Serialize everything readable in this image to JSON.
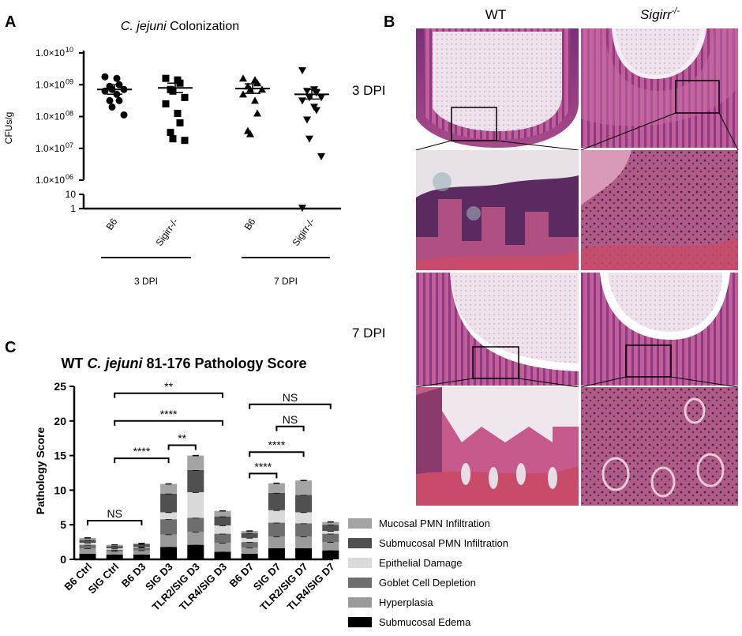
{
  "panels": {
    "a": {
      "letter": "A"
    },
    "b": {
      "letter": "B"
    },
    "c": {
      "letter": "C"
    }
  },
  "histology": {
    "col_wt": "WT",
    "col_sigirr": "Sigirr",
    "col_sigirr_sup": "-/-",
    "row_3dpi": "3 DPI",
    "row_7dpi": "7 DPI",
    "colors": {
      "tissue_dark": "#6b2b6e",
      "tissue_pink": "#c7649b",
      "tissue_light": "#ead9e6",
      "muscle": "#c94b6a"
    }
  },
  "chart_data": [
    {
      "type": "scatter",
      "title_italic": "C. jejuni",
      "title_rest": " Colonization",
      "ylabel": "CFUs/g",
      "yscale": "log (broken axis)",
      "ytick_labels": [
        "1.0×10",
        "1.0×10",
        "1.0×10",
        "1.0×10",
        "1.0×10",
        "10",
        "1"
      ],
      "ytick_exponents": [
        "10",
        "09",
        "08",
        "07",
        "06",
        "",
        ""
      ],
      "ytick_values_log10": [
        10,
        9,
        8,
        7,
        6,
        1,
        0
      ],
      "ylim_log10_upper": [
        6,
        10.2
      ],
      "ylim_log10_lower": [
        0,
        1
      ],
      "categories": [
        "B6",
        "Sigirr-/-",
        "B6",
        "Sigirr-/-"
      ],
      "groups": [
        {
          "label": "3 DPI",
          "categories": [
            0,
            1
          ]
        },
        {
          "label": "7 DPI",
          "categories": [
            2,
            3
          ]
        }
      ],
      "series": [
        {
          "marker": "circle",
          "log10_values": [
            9.25,
            9.2,
            9.0,
            8.95,
            8.85,
            8.85,
            8.8,
            8.7,
            8.5,
            8.5,
            8.3,
            8.05
          ],
          "mean_log10": 8.85
        },
        {
          "marker": "square",
          "log10_values": [
            9.2,
            9.15,
            9.05,
            8.85,
            8.8,
            8.6,
            8.4,
            8.1,
            7.8,
            7.5,
            7.3,
            7.25
          ],
          "mean_log10": 8.9
        },
        {
          "marker": "triangle-up",
          "log10_values": [
            9.2,
            9.15,
            9.05,
            8.95,
            8.85,
            8.85,
            8.7,
            8.5,
            8.1,
            7.55,
            7.45
          ],
          "mean_log10": 8.88
        },
        {
          "marker": "triangle-down",
          "log10_values": [
            9.45,
            8.85,
            8.75,
            8.8,
            8.6,
            8.6,
            8.5,
            8.3,
            8.2,
            7.9,
            7.3,
            6.75,
            0.05
          ],
          "mean_log10": 8.7
        }
      ]
    },
    {
      "type": "bar",
      "stacked": true,
      "title_prefix": "WT ",
      "title_italic": "C. jejuni",
      "title_suffix": " 81-176 Pathology Score",
      "ylabel": "Pathology Score",
      "ylim": [
        0,
        25
      ],
      "yticks": [
        "0",
        "5",
        "10",
        "15",
        "20",
        "25"
      ],
      "categories": [
        "B6 Ctrl",
        "SIG Ctrl",
        "B6 D3",
        "SIG D3",
        "TLR2/SIG D3",
        "TLR4/SIG D3",
        "B6 D7",
        "SIG D7",
        "TLR2/SIG D7",
        "TLR4/SIG D7"
      ],
      "series": [
        {
          "name": "Submucosal Edema",
          "color": "#000000",
          "values": [
            0.8,
            0.7,
            0.7,
            1.8,
            2.1,
            1.1,
            0.8,
            1.6,
            1.6,
            1.3
          ]
        },
        {
          "name": "Hyperplasia",
          "color": "#9a9a9a",
          "values": [
            0.8,
            0.5,
            0.6,
            1.8,
            1.9,
            1.3,
            0.9,
            1.7,
            1.7,
            1.2
          ]
        },
        {
          "name": "Goblet Cell Depletion",
          "color": "#6e6e6e",
          "values": [
            0.5,
            0.2,
            0.4,
            2.2,
            2.0,
            1.3,
            0.8,
            2.0,
            1.9,
            1.2
          ]
        },
        {
          "name": "Epithelial Damage",
          "color": "#dadada",
          "values": [
            0.3,
            0.2,
            0.1,
            1.0,
            3.7,
            1.2,
            0.6,
            1.8,
            1.6,
            0.4
          ]
        },
        {
          "name": "Submucosal PMN Infiltration",
          "color": "#505050",
          "values": [
            0.4,
            0.3,
            0.4,
            2.7,
            3.2,
            1.3,
            0.7,
            2.5,
            2.5,
            0.9
          ]
        },
        {
          "name": "Mucosal PMN Infiltration",
          "color": "#a4a4a4",
          "values": [
            0.3,
            0.2,
            0.1,
            1.4,
            2.1,
            0.8,
            0.3,
            1.4,
            2.1,
            0.4
          ]
        }
      ],
      "legend_order": [
        "Mucosal PMN Infiltration",
        "Submucosal PMN Infiltration",
        "Epithelial Damage",
        "Goblet Cell Depletion",
        "Hyperplasia",
        "Submucosal Edema"
      ],
      "annotations": [
        {
          "label": "**",
          "from": 1,
          "to": 5,
          "level": 24.0
        },
        {
          "label": "****",
          "from": 1,
          "to": 5,
          "level": 20.0
        },
        {
          "label": "**",
          "from": 3,
          "to": 4,
          "level": 16.5
        },
        {
          "label": "****",
          "from": 1,
          "to": 3,
          "level": 14.6
        },
        {
          "label": "NS",
          "from": 0,
          "to": 2,
          "level": 5.6
        },
        {
          "label": "NS",
          "from": 6,
          "to": 9,
          "level": 22.4
        },
        {
          "label": "NS",
          "from": 7,
          "to": 8,
          "level": 19.2
        },
        {
          "label": "****",
          "from": 6,
          "to": 8,
          "level": 15.5
        },
        {
          "label": "****",
          "from": 6,
          "to": 7,
          "level": 12.4
        }
      ]
    }
  ]
}
